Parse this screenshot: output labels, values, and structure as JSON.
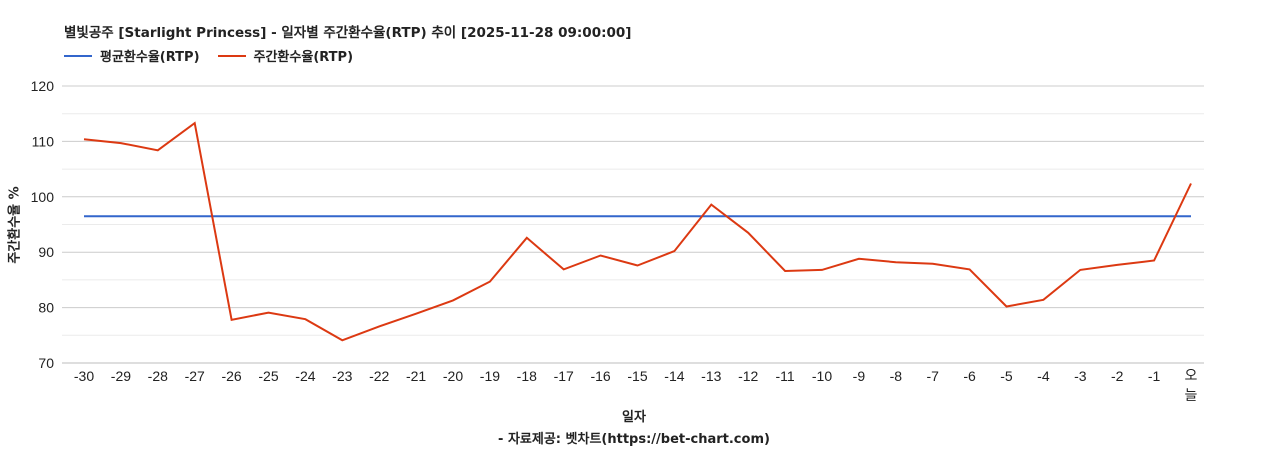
{
  "title": "별빛공주 [Starlight Princess] - 일자별 주간환수율(RTP) 추이 [2025-11-28 09:00:00]",
  "legend": [
    {
      "label": "평균환수율(RTP)",
      "color": "#3366cc"
    },
    {
      "label": "주간환수율(RTP)",
      "color": "#dc3912"
    }
  ],
  "axes": {
    "ylabel": "주간환수율 %",
    "xlabel": "일자",
    "source": "- 자료제공: 벳차트(https://bet-chart.com)"
  },
  "chart_data": {
    "type": "line",
    "title": "별빛공주 [Starlight Princess] - 일자별 주간환수율(RTP) 추이 [2025-11-28 09:00:00]",
    "xlabel": "일자",
    "ylabel": "주간환수율 %",
    "ylim": [
      70,
      120
    ],
    "yticks": [
      70,
      80,
      90,
      100,
      110,
      120
    ],
    "grid": true,
    "legend_position": "top",
    "categories": [
      "-30",
      "-29",
      "-28",
      "-27",
      "-26",
      "-25",
      "-24",
      "-23",
      "-22",
      "-21",
      "-20",
      "-19",
      "-18",
      "-17",
      "-16",
      "-15",
      "-14",
      "-13",
      "-12",
      "-11",
      "-10",
      "-9",
      "-8",
      "-7",
      "-6",
      "-5",
      "-4",
      "-3",
      "-2",
      "-1",
      "오늘"
    ],
    "series": [
      {
        "name": "평균환수율(RTP)",
        "color": "#3366cc",
        "values": [
          96.5,
          96.5,
          96.5,
          96.5,
          96.5,
          96.5,
          96.5,
          96.5,
          96.5,
          96.5,
          96.5,
          96.5,
          96.5,
          96.5,
          96.5,
          96.5,
          96.5,
          96.5,
          96.5,
          96.5,
          96.5,
          96.5,
          96.5,
          96.5,
          96.5,
          96.5,
          96.5,
          96.5,
          96.5,
          96.5,
          96.5
        ]
      },
      {
        "name": "주간환수율(RTP)",
        "color": "#dc3912",
        "values": [
          110.4,
          109.7,
          108.4,
          113.3,
          77.8,
          79.1,
          77.9,
          74.1,
          76.6,
          78.9,
          81.3,
          84.7,
          92.6,
          86.9,
          89.4,
          87.6,
          90.2,
          98.6,
          93.5,
          86.6,
          86.8,
          88.8,
          88.2,
          87.9,
          86.9,
          80.2,
          81.4,
          86.8,
          87.7,
          88.5,
          102.4
        ]
      }
    ]
  }
}
